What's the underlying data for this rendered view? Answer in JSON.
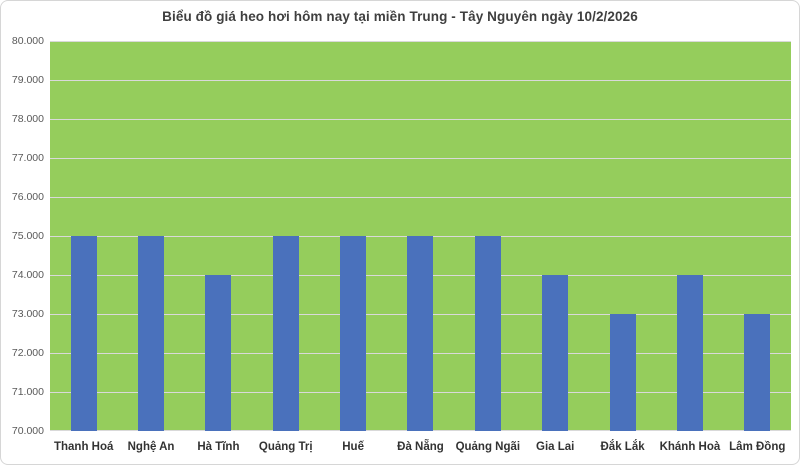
{
  "chart_data": {
    "type": "bar",
    "title": "Biểu đồ giá heo hơi hôm nay tại miền Trung - Tây Nguyên ngày 10/2/2026",
    "categories": [
      "Thanh Hoá",
      "Nghệ An",
      "Hà Tĩnh",
      "Quảng Trị",
      "Huế",
      "Đà Nẵng",
      "Quảng Ngãi",
      "Gia Lai",
      "Đắk Lắk",
      "Khánh Hoà",
      "Lâm Đồng"
    ],
    "values": [
      75000,
      75000,
      74000,
      75000,
      75000,
      75000,
      75000,
      74000,
      73000,
      74000,
      73000
    ],
    "xlabel": "",
    "ylabel": "",
    "ylim": [
      70000,
      80000
    ],
    "ytick_step": 1000,
    "ytick_labels_top_to_bottom": [
      "80.000",
      "79.000",
      "78.000",
      "77.000",
      "76.000",
      "75.000",
      "74.000",
      "73.000",
      "72.000",
      "71.000",
      "70.000"
    ],
    "grid": true,
    "legend_position": "none",
    "colors": {
      "bar": "#4a71bc",
      "plot_background": "#95cd5c",
      "gridline": "#d9d9d9",
      "title_text": "#3f3f3f",
      "y_tick_text": "#595959",
      "x_tick_text": "#333333",
      "frame_border": "#d6d6d6",
      "page_background": "#ffffff"
    }
  }
}
